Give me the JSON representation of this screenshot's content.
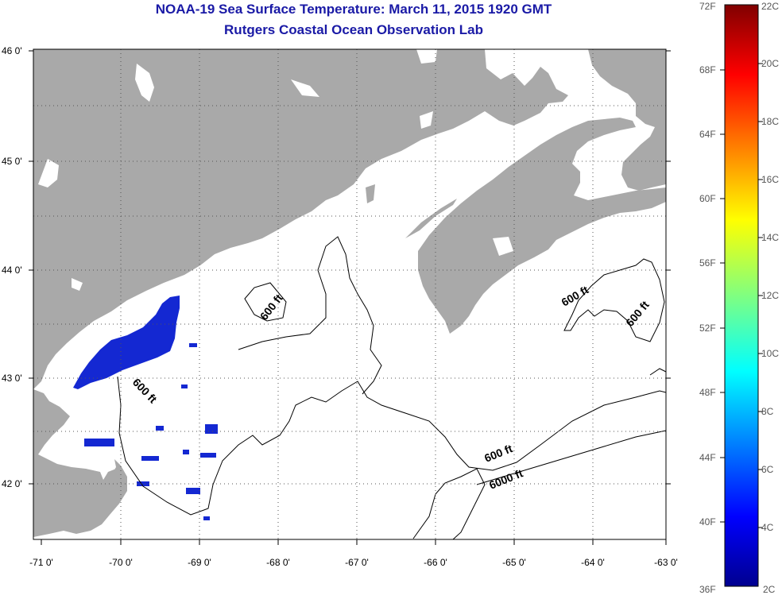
{
  "title": "NOAA-19 Sea Surface Temperature:  March 11, 2015 1920 GMT",
  "subtitle": "Rutgers Coastal Ocean Observation Lab",
  "lat_labels": [
    "46 0'",
    "45 0'",
    "44 0'",
    "43 0'",
    "42 0'"
  ],
  "lon_labels": [
    "-71 0'",
    "-70 0'",
    "-69 0'",
    "-68 0'",
    "-67 0'",
    "-66 0'",
    "-65 0'",
    "-64 0'",
    "-63 0'"
  ],
  "contour_labels": [
    "600 ft",
    "600 ft",
    "600 ft",
    "600 ft",
    "600 ft",
    "6000 ft"
  ],
  "colorbar": {
    "fahrenheit": [
      "72F",
      "68F",
      "64F",
      "60F",
      "56F",
      "52F",
      "48F",
      "44F",
      "40F",
      "36F"
    ],
    "celsius": [
      "22C",
      "20C",
      "18C",
      "16C",
      "14C",
      "12C",
      "10C",
      "8C",
      "6C",
      "4C",
      "2C"
    ]
  },
  "colors": {
    "land": "#a9a9a9",
    "water": "#ffffff",
    "sst_cold": "#1428d2",
    "title": "#1a1aa6"
  }
}
